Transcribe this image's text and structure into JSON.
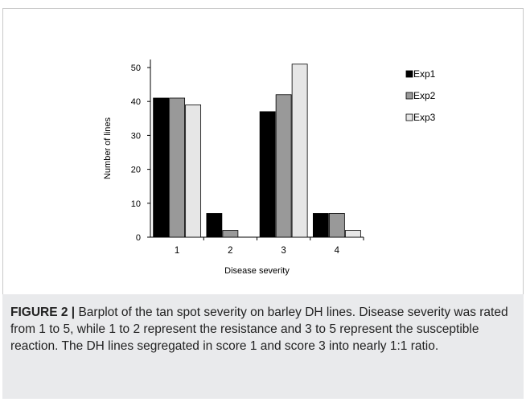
{
  "chart_data": {
    "type": "bar",
    "categories": [
      "1",
      "2",
      "3",
      "4"
    ],
    "series": [
      {
        "name": "Exp1",
        "values": [
          41,
          7,
          37,
          7
        ],
        "color": "#000000"
      },
      {
        "name": "Exp2",
        "values": [
          41,
          2,
          42,
          7
        ],
        "color": "#999999"
      },
      {
        "name": "Exp3",
        "values": [
          39,
          0,
          51,
          2
        ],
        "color": "#e6e6e6"
      }
    ],
    "xlabel": "Disease severity",
    "ylabel": "Number of lines",
    "ylim": [
      0,
      50
    ],
    "yticks": [
      0,
      10,
      20,
      30,
      40,
      50
    ],
    "grid": false,
    "legend": "right"
  },
  "caption": {
    "lead": "FIGURE 2 |",
    "text": "Barplot of the tan spot severity on barley DH lines. Disease severity was rated from 1 to 5, while 1 to 2 represent the resistance and 3 to 5 represent the susceptible reaction. The DH lines segregated in score 1 and score 3 into nearly 1:1 ratio."
  }
}
